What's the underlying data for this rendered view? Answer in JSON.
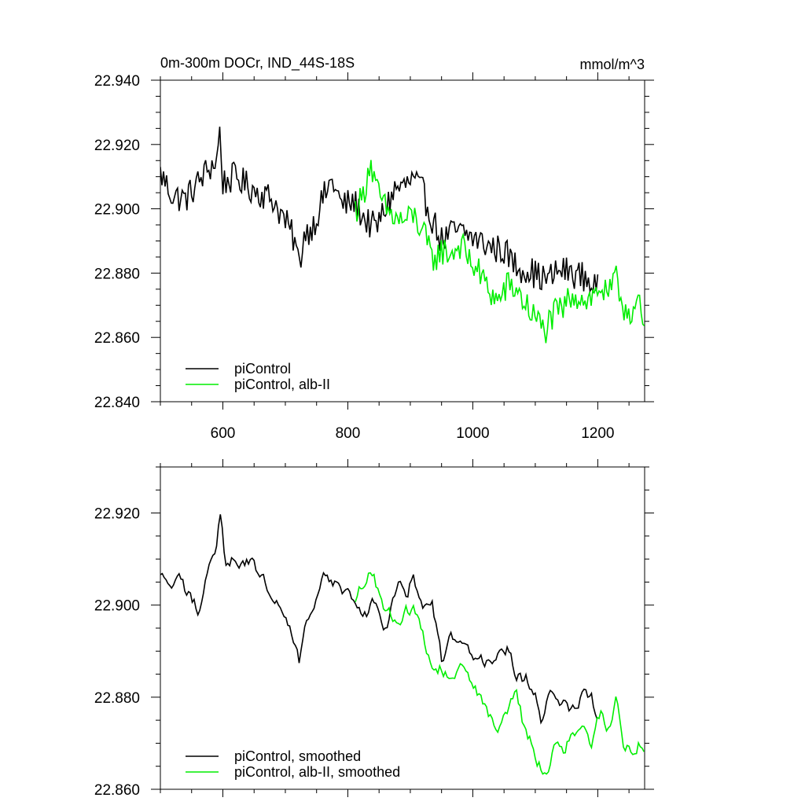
{
  "chart_data": [
    {
      "type": "line",
      "title": "0m-300m DOCr, IND_44S-18S",
      "units": "mmol/m^3",
      "xlim": [
        500,
        1275
      ],
      "ylim": [
        22.84,
        22.94
      ],
      "xticks": [
        600,
        800,
        1000,
        1200
      ],
      "xtick_labels": [
        "600",
        "800",
        "1000",
        "1200"
      ],
      "yticks": [
        22.84,
        22.86,
        22.88,
        22.9,
        22.92,
        22.94
      ],
      "ytick_labels": [
        "22.840",
        "22.860",
        "22.880",
        "22.900",
        "22.920",
        "22.940"
      ],
      "legend_position": "bottom-left",
      "series": [
        {
          "name": "piControl",
          "color": "#000000",
          "points": [
            [
              500,
              22.911
            ],
            [
              520,
              22.904
            ],
            [
              540,
              22.903
            ],
            [
              560,
              22.908
            ],
            [
              575,
              22.912
            ],
            [
              590,
              22.915
            ],
            [
              595,
              22.924
            ],
            [
              600,
              22.908
            ],
            [
              620,
              22.91
            ],
            [
              640,
              22.907
            ],
            [
              660,
              22.905
            ],
            [
              680,
              22.903
            ],
            [
              700,
              22.896
            ],
            [
              715,
              22.89
            ],
            [
              722,
              22.882
            ],
            [
              730,
              22.892
            ],
            [
              745,
              22.895
            ],
            [
              760,
              22.903
            ],
            [
              775,
              22.909
            ],
            [
              790,
              22.901
            ],
            [
              810,
              22.902
            ],
            [
              830,
              22.896
            ],
            [
              845,
              22.894
            ],
            [
              860,
              22.9
            ],
            [
              875,
              22.906
            ],
            [
              890,
              22.907
            ],
            [
              905,
              22.909
            ],
            [
              920,
              22.905
            ],
            [
              935,
              22.897
            ],
            [
              950,
              22.89
            ],
            [
              970,
              22.893
            ],
            [
              990,
              22.892
            ],
            [
              1010,
              22.89
            ],
            [
              1030,
              22.888
            ],
            [
              1050,
              22.887
            ],
            [
              1070,
              22.882
            ],
            [
              1090,
              22.881
            ],
            [
              1105,
              22.879
            ],
            [
              1120,
              22.878
            ],
            [
              1140,
              22.881
            ],
            [
              1160,
              22.88
            ],
            [
              1175,
              22.879
            ],
            [
              1190,
              22.877
            ],
            [
              1200,
              22.875
            ]
          ]
        },
        {
          "name": "piControl, alb-II",
          "color": "#00ee00",
          "points": [
            [
              812,
              22.9
            ],
            [
              825,
              22.904
            ],
            [
              835,
              22.915
            ],
            [
              845,
              22.906
            ],
            [
              860,
              22.9
            ],
            [
              875,
              22.897
            ],
            [
              890,
              22.896
            ],
            [
              905,
              22.898
            ],
            [
              920,
              22.893
            ],
            [
              935,
              22.884
            ],
            [
              950,
              22.887
            ],
            [
              965,
              22.886
            ],
            [
              980,
              22.889
            ],
            [
              995,
              22.884
            ],
            [
              1010,
              22.88
            ],
            [
              1025,
              22.875
            ],
            [
              1040,
              22.871
            ],
            [
              1055,
              22.876
            ],
            [
              1070,
              22.875
            ],
            [
              1085,
              22.87
            ],
            [
              1100,
              22.866
            ],
            [
              1115,
              22.862
            ],
            [
              1130,
              22.867
            ],
            [
              1145,
              22.869
            ],
            [
              1160,
              22.874
            ],
            [
              1175,
              22.872
            ],
            [
              1190,
              22.872
            ],
            [
              1205,
              22.876
            ],
            [
              1215,
              22.872
            ],
            [
              1230,
              22.878
            ],
            [
              1240,
              22.87
            ],
            [
              1255,
              22.868
            ],
            [
              1265,
              22.871
            ],
            [
              1275,
              22.86
            ]
          ]
        }
      ]
    },
    {
      "type": "line",
      "xlim": [
        500,
        1275
      ],
      "ylim": [
        22.86,
        22.93
      ],
      "xticks": [
        600,
        800,
        1000,
        1200
      ],
      "yticks": [
        22.86,
        22.88,
        22.9,
        22.92
      ],
      "ytick_labels": [
        "22.860",
        "22.880",
        "22.900",
        "22.920"
      ],
      "legend_position": "bottom-left",
      "series": [
        {
          "name": "piControl, smoothed",
          "color": "#000000",
          "points": [
            [
              500,
              22.906
            ],
            [
              515,
              22.904
            ],
            [
              530,
              22.905
            ],
            [
              545,
              22.902
            ],
            [
              560,
              22.899
            ],
            [
              570,
              22.905
            ],
            [
              580,
              22.909
            ],
            [
              590,
              22.913
            ],
            [
              595,
              22.92
            ],
            [
              605,
              22.908
            ],
            [
              620,
              22.91
            ],
            [
              640,
              22.91
            ],
            [
              660,
              22.906
            ],
            [
              680,
              22.903
            ],
            [
              700,
              22.899
            ],
            [
              715,
              22.893
            ],
            [
              722,
              22.887
            ],
            [
              730,
              22.895
            ],
            [
              750,
              22.9
            ],
            [
              765,
              22.907
            ],
            [
              780,
              22.905
            ],
            [
              800,
              22.902
            ],
            [
              815,
              22.9
            ],
            [
              830,
              22.898
            ],
            [
              840,
              22.903
            ],
            [
              855,
              22.895
            ],
            [
              865,
              22.895
            ],
            [
              880,
              22.905
            ],
            [
              895,
              22.903
            ],
            [
              905,
              22.906
            ],
            [
              920,
              22.9
            ],
            [
              935,
              22.902
            ],
            [
              950,
              22.888
            ],
            [
              965,
              22.893
            ],
            [
              980,
              22.892
            ],
            [
              995,
              22.89
            ],
            [
              1010,
              22.889
            ],
            [
              1025,
              22.887
            ],
            [
              1040,
              22.888
            ],
            [
              1055,
              22.89
            ],
            [
              1070,
              22.884
            ],
            [
              1085,
              22.884
            ],
            [
              1100,
              22.88
            ],
            [
              1110,
              22.875
            ],
            [
              1125,
              22.882
            ],
            [
              1140,
              22.878
            ],
            [
              1160,
              22.878
            ],
            [
              1175,
              22.881
            ],
            [
              1190,
              22.88
            ],
            [
              1200,
              22.875
            ]
          ]
        },
        {
          "name": "piControl, alb-II, smoothed",
          "color": "#00ee00",
          "points": [
            [
              812,
              22.9
            ],
            [
              825,
              22.905
            ],
            [
              835,
              22.909
            ],
            [
              845,
              22.905
            ],
            [
              860,
              22.899
            ],
            [
              875,
              22.897
            ],
            [
              890,
              22.898
            ],
            [
              905,
              22.9
            ],
            [
              920,
              22.894
            ],
            [
              935,
              22.887
            ],
            [
              950,
              22.886
            ],
            [
              965,
              22.884
            ],
            [
              980,
              22.886
            ],
            [
              995,
              22.883
            ],
            [
              1010,
              22.881
            ],
            [
              1025,
              22.877
            ],
            [
              1040,
              22.873
            ],
            [
              1055,
              22.877
            ],
            [
              1070,
              22.88
            ],
            [
              1085,
              22.872
            ],
            [
              1100,
              22.868
            ],
            [
              1115,
              22.863
            ],
            [
              1130,
              22.868
            ],
            [
              1145,
              22.868
            ],
            [
              1160,
              22.872
            ],
            [
              1175,
              22.874
            ],
            [
              1190,
              22.87
            ],
            [
              1205,
              22.877
            ],
            [
              1215,
              22.873
            ],
            [
              1230,
              22.88
            ],
            [
              1240,
              22.87
            ],
            [
              1255,
              22.869
            ],
            [
              1265,
              22.87
            ],
            [
              1275,
              22.866
            ]
          ]
        }
      ]
    }
  ]
}
